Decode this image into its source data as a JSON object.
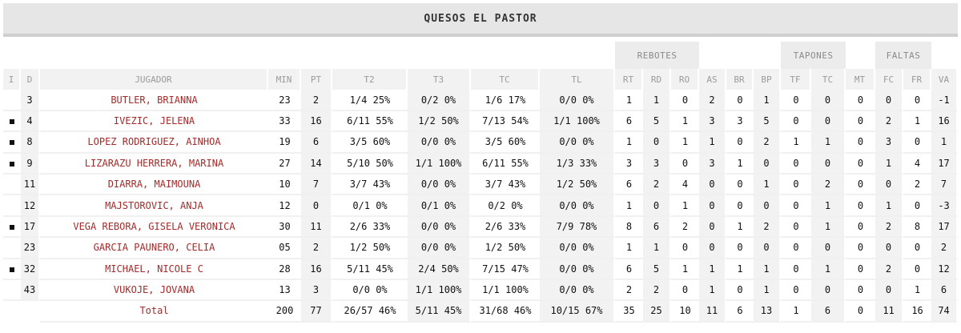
{
  "team": {
    "name": "QUESOS EL PASTOR"
  },
  "groups": {
    "rebotes": "REBOTES",
    "tapones": "TAPONES",
    "faltas": "FALTAS"
  },
  "headers": {
    "i": "I",
    "d": "D",
    "jugador": "JUGADOR",
    "min": "MIN",
    "pt": "PT",
    "t2": "T2",
    "t3": "T3",
    "tc": "TC",
    "tl": "TL",
    "rt": "RT",
    "rd": "RD",
    "ro": "RO",
    "as": "AS",
    "br": "BR",
    "bp": "BP",
    "tf": "TF",
    "tc2": "TC",
    "mt": "MT",
    "fc": "FC",
    "fr": "FR",
    "va": "VA"
  },
  "players": [
    {
      "starter": false,
      "d": "3",
      "name": "BUTLER, BRIANNA",
      "min": "23",
      "pt": "2",
      "t2": "1/4 25%",
      "t3": "0/2 0%",
      "tc": "1/6 17%",
      "tl": "0/0 0%",
      "rt": "1",
      "rd": "1",
      "ro": "0",
      "as": "2",
      "br": "0",
      "bp": "1",
      "tf": "0",
      "tc2": "0",
      "mt": "0",
      "fc": "0",
      "fr": "0",
      "va": "-1"
    },
    {
      "starter": true,
      "d": "4",
      "name": "IVEZIC, JELENA",
      "min": "33",
      "pt": "16",
      "t2": "6/11 55%",
      "t3": "1/2 50%",
      "tc": "7/13 54%",
      "tl": "1/1 100%",
      "rt": "6",
      "rd": "5",
      "ro": "1",
      "as": "3",
      "br": "3",
      "bp": "5",
      "tf": "0",
      "tc2": "0",
      "mt": "0",
      "fc": "2",
      "fr": "1",
      "va": "16"
    },
    {
      "starter": true,
      "d": "8",
      "name": "LOPEZ RODRIGUEZ, AINHOA",
      "min": "19",
      "pt": "6",
      "t2": "3/5 60%",
      "t3": "0/0 0%",
      "tc": "3/5 60%",
      "tl": "0/0 0%",
      "rt": "1",
      "rd": "0",
      "ro": "1",
      "as": "1",
      "br": "0",
      "bp": "2",
      "tf": "1",
      "tc2": "1",
      "mt": "0",
      "fc": "3",
      "fr": "0",
      "va": "1"
    },
    {
      "starter": true,
      "d": "9",
      "name": "LIZARAZU HERRERA, MARINA",
      "min": "27",
      "pt": "14",
      "t2": "5/10 50%",
      "t3": "1/1 100%",
      "tc": "6/11 55%",
      "tl": "1/3 33%",
      "rt": "3",
      "rd": "3",
      "ro": "0",
      "as": "3",
      "br": "1",
      "bp": "0",
      "tf": "0",
      "tc2": "0",
      "mt": "0",
      "fc": "1",
      "fr": "4",
      "va": "17"
    },
    {
      "starter": false,
      "d": "11",
      "name": "DIARRA, MAIMOUNA",
      "min": "10",
      "pt": "7",
      "t2": "3/7 43%",
      "t3": "0/0 0%",
      "tc": "3/7 43%",
      "tl": "1/2 50%",
      "rt": "6",
      "rd": "2",
      "ro": "4",
      "as": "0",
      "br": "0",
      "bp": "1",
      "tf": "0",
      "tc2": "2",
      "mt": "0",
      "fc": "0",
      "fr": "2",
      "va": "7"
    },
    {
      "starter": false,
      "d": "12",
      "name": "MAJSTOROVIC, ANJA",
      "min": "12",
      "pt": "0",
      "t2": "0/1 0%",
      "t3": "0/1 0%",
      "tc": "0/2 0%",
      "tl": "0/0 0%",
      "rt": "1",
      "rd": "0",
      "ro": "1",
      "as": "0",
      "br": "0",
      "bp": "0",
      "tf": "0",
      "tc2": "1",
      "mt": "0",
      "fc": "1",
      "fr": "0",
      "va": "-3"
    },
    {
      "starter": true,
      "d": "17",
      "name": "VEGA REBORA, GISELA VERONICA",
      "min": "30",
      "pt": "11",
      "t2": "2/6 33%",
      "t3": "0/0 0%",
      "tc": "2/6 33%",
      "tl": "7/9 78%",
      "rt": "8",
      "rd": "6",
      "ro": "2",
      "as": "0",
      "br": "1",
      "bp": "2",
      "tf": "0",
      "tc2": "1",
      "mt": "0",
      "fc": "2",
      "fr": "8",
      "va": "17"
    },
    {
      "starter": false,
      "d": "23",
      "name": "GARCIA PAUNERO, CELIA",
      "min": "05",
      "pt": "2",
      "t2": "1/2 50%",
      "t3": "0/0 0%",
      "tc": "1/2 50%",
      "tl": "0/0 0%",
      "rt": "1",
      "rd": "1",
      "ro": "0",
      "as": "0",
      "br": "0",
      "bp": "0",
      "tf": "0",
      "tc2": "0",
      "mt": "0",
      "fc": "0",
      "fr": "0",
      "va": "2"
    },
    {
      "starter": true,
      "d": "32",
      "name": "MICHAEL, NICOLE C",
      "min": "28",
      "pt": "16",
      "t2": "5/11 45%",
      "t3": "2/4 50%",
      "tc": "7/15 47%",
      "tl": "0/0 0%",
      "rt": "6",
      "rd": "5",
      "ro": "1",
      "as": "1",
      "br": "1",
      "bp": "1",
      "tf": "0",
      "tc2": "1",
      "mt": "0",
      "fc": "2",
      "fr": "0",
      "va": "12"
    },
    {
      "starter": false,
      "d": "43",
      "name": "VUKOJE, JOVANA",
      "min": "13",
      "pt": "3",
      "t2": "0/0 0%",
      "t3": "1/1 100%",
      "tc": "1/1 100%",
      "tl": "0/0 0%",
      "rt": "2",
      "rd": "2",
      "ro": "0",
      "as": "1",
      "br": "0",
      "bp": "1",
      "tf": "0",
      "tc2": "0",
      "mt": "0",
      "fc": "0",
      "fr": "1",
      "va": "6"
    }
  ],
  "totals": {
    "label": "Total",
    "min": "200",
    "pt": "77",
    "t2": "26/57 46%",
    "t3": "5/11 45%",
    "tc": "31/68 46%",
    "tl": "10/15 67%",
    "rt": "35",
    "rd": "25",
    "ro": "10",
    "as": "11",
    "br": "6",
    "bp": "13",
    "tf": "1",
    "tc2": "6",
    "mt": "0",
    "fc": "11",
    "fr": "16",
    "va": "74"
  }
}
